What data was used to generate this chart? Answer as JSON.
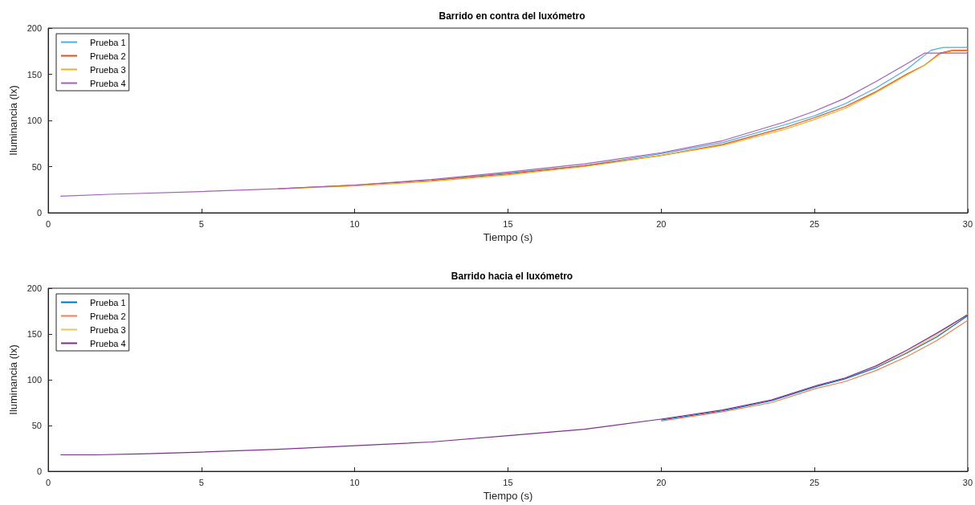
{
  "chart_data": [
    {
      "type": "line",
      "title": "Barrido en contra del luxómetro",
      "xlabel": "Tiempo (s)",
      "ylabel": "Iluminancia (lx)",
      "xlim": [
        0,
        30
      ],
      "xticks": [
        0,
        5,
        10,
        15,
        20,
        25,
        30
      ],
      "ylim": [
        0,
        200
      ],
      "yticks": [
        0,
        50,
        100,
        150,
        200
      ],
      "legend": "top left",
      "series": [
        {
          "name": "Prueba 1",
          "color": "#4dace0",
          "x": [
            12.5,
            15,
            17.5,
            20,
            22,
            24,
            25,
            26,
            27,
            28,
            28.8,
            29.2,
            30
          ],
          "values": [
            35,
            43,
            51,
            64,
            76,
            95,
            105,
            118,
            135,
            155,
            176,
            179,
            179
          ]
        },
        {
          "name": "Prueba 2",
          "color": "#d95319",
          "x": [
            7.5,
            10,
            12.5,
            15,
            17.5,
            20,
            22,
            24,
            25,
            26,
            27,
            28,
            28.6,
            29.1,
            29.5,
            30
          ],
          "values": [
            26,
            30,
            35,
            42,
            51,
            62,
            74,
            92,
            103,
            115,
            131,
            150,
            160,
            173,
            176,
            176
          ]
        },
        {
          "name": "Prueba 3",
          "color": "#edb120",
          "x": [
            7.5,
            10,
            12.5,
            15,
            17.5,
            20,
            22,
            24,
            25,
            26,
            27,
            28,
            28.6,
            29.1,
            29.5,
            30
          ],
          "values": [
            26,
            29,
            34,
            41,
            50,
            62,
            73,
            90,
            101,
            113,
            130,
            149,
            160,
            172,
            175,
            175
          ]
        },
        {
          "name": "Prueba 4",
          "color": "#a25fbe",
          "x": [
            0.4,
            2,
            5,
            7.5,
            10,
            12.5,
            15,
            17.5,
            20,
            22,
            24,
            25,
            26,
            27,
            28,
            28.6,
            30
          ],
          "values": [
            18,
            20,
            23,
            26,
            30,
            36,
            44,
            53,
            65,
            78,
            98,
            110,
            124,
            142,
            161,
            173,
            173
          ]
        }
      ]
    },
    {
      "type": "line",
      "title": "Barrido hacia el luxómetro",
      "xlabel": "Tiempo (s)",
      "ylabel": "Iluminancia (lx)",
      "xlim": [
        0,
        30
      ],
      "xticks": [
        0,
        5,
        10,
        15,
        20,
        25,
        30
      ],
      "ylim": [
        0,
        200
      ],
      "yticks": [
        0,
        50,
        100,
        150,
        200
      ],
      "legend": "top left",
      "x": [
        0.4,
        1.5,
        3,
        5,
        7.5,
        10,
        12.5,
        15,
        17.5,
        20,
        22,
        23.6,
        25,
        26,
        27,
        28,
        29,
        30
      ],
      "series": [
        {
          "name": "Prueba 1",
          "color": "#0072bd",
          "values": [
            null,
            null,
            null,
            null,
            null,
            null,
            null,
            null,
            null,
            56,
            66,
            77,
            92,
            101,
            113,
            129,
            147,
            170
          ]
        },
        {
          "name": "Prueba 2",
          "color": "#f08050",
          "values": [
            null,
            null,
            null,
            null,
            null,
            null,
            null,
            null,
            null,
            55,
            65,
            75,
            90,
            98,
            110,
            125,
            143,
            165
          ]
        },
        {
          "name": "Prueba 3",
          "color": "#f5c060",
          "values": [
            null,
            null,
            null,
            null,
            null,
            null,
            null,
            null,
            null,
            null,
            null,
            null,
            null,
            null,
            114,
            130,
            149,
            172
          ]
        },
        {
          "name": "Prueba 4",
          "color": "#7e2f8e",
          "values": [
            18,
            18,
            19,
            21,
            24,
            28,
            32,
            39,
            46,
            57,
            67,
            78,
            93,
            102,
            115,
            132,
            151,
            171
          ]
        }
      ]
    }
  ]
}
